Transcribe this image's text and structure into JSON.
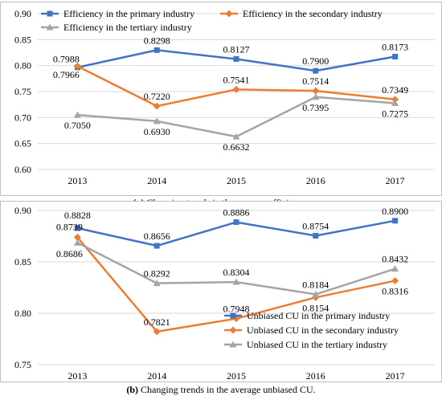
{
  "chart_data": [
    {
      "type": "line",
      "categories": [
        "2013",
        "2014",
        "2015",
        "2016",
        "2017"
      ],
      "ylim": [
        0.6,
        0.9
      ],
      "yticks": [
        "0.60",
        "0.65",
        "0.70",
        "0.75",
        "0.80",
        "0.85",
        "0.90"
      ],
      "grid": true,
      "legend_position": "top",
      "series": [
        {
          "name": "Efficiency in the primary industry",
          "color": "#4472c4",
          "marker": "square",
          "values": [
            0.7966,
            0.8298,
            0.8127,
            0.79,
            0.8173
          ],
          "labels": [
            "0.7966",
            "0.8298",
            "0.8127",
            "0.7900",
            "0.8173"
          ]
        },
        {
          "name": "Efficiency in the secondary industry",
          "color": "#ed7d31",
          "marker": "diamond",
          "values": [
            0.7988,
            0.722,
            0.7541,
            0.7514,
            0.7349
          ],
          "labels": [
            "0.7988",
            "0.7220",
            "0.7541",
            "0.7514",
            "0.7349"
          ]
        },
        {
          "name": "Efficiency in the tertiary industry",
          "color": "#a5a5a5",
          "marker": "triangle",
          "values": [
            0.705,
            0.693,
            0.6632,
            0.7395,
            0.7275
          ],
          "labels": [
            "0.7050",
            "0.6930",
            "0.6632",
            "0.7395",
            "0.7275"
          ]
        }
      ]
    },
    {
      "type": "line",
      "categories": [
        "2013",
        "2014",
        "2015",
        "2016",
        "2017"
      ],
      "ylim": [
        0.75,
        0.9
      ],
      "yticks": [
        "0.75",
        "0.80",
        "0.85",
        "0.90"
      ],
      "grid": true,
      "legend_position": "bottom-right",
      "series": [
        {
          "name": "Unbiased CU in the primary industry",
          "color": "#4472c4",
          "marker": "square",
          "values": [
            0.8828,
            0.8656,
            0.8886,
            0.8754,
            0.89
          ],
          "labels": [
            "0.8828",
            "0.8656",
            "0.8886",
            "0.8754",
            "0.8900"
          ]
        },
        {
          "name": "Unbiased CU in the secondary industry",
          "color": "#ed7d31",
          "marker": "diamond",
          "values": [
            0.8739,
            0.7821,
            0.7948,
            0.8154,
            0.8316
          ],
          "labels": [
            "0.8739",
            "0.7821",
            "0.7948",
            "0.8154",
            "0.8316"
          ]
        },
        {
          "name": "Unbiased CU in the tertiary industry",
          "color": "#a5a5a5",
          "marker": "triangle",
          "values": [
            0.8686,
            0.8292,
            0.8304,
            0.8184,
            0.8432
          ],
          "labels": [
            "0.8686",
            "0.8292",
            "0.8304",
            "0.8184",
            "0.8432"
          ]
        }
      ]
    }
  ],
  "captions": {
    "a_letter": "(a)",
    "a_text": " Changing trends in the average efficiency.",
    "b_letter": "(b)",
    "b_text": " Changing trends in the average unbiased CU."
  }
}
